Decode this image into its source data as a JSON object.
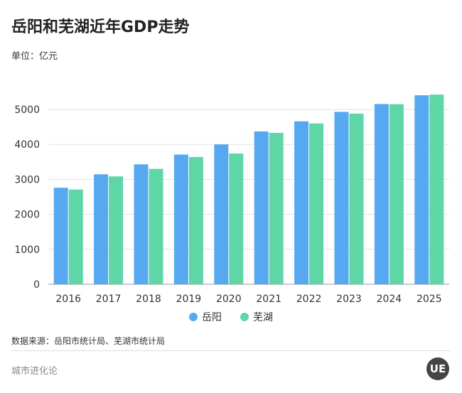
{
  "chart_data": {
    "type": "bar",
    "title": "岳阳和芜湖近年GDP走势",
    "unit_label": "单位：亿元",
    "categories": [
      "2016",
      "2017",
      "2018",
      "2019",
      "2020",
      "2021",
      "2022",
      "2023",
      "2024",
      "2025"
    ],
    "series": [
      {
        "name": "岳阳",
        "color": "#56a8f0",
        "values": [
          2760,
          3145,
          3430,
          3710,
          4000,
          4370,
          4660,
          4930,
          5155,
          5405
        ]
      },
      {
        "name": "芜湖",
        "color": "#5ed6a6",
        "values": [
          2710,
          3085,
          3300,
          3640,
          3740,
          4330,
          4600,
          4880,
          5150,
          5425
        ]
      }
    ],
    "ylim": [
      0,
      5500
    ],
    "yticks": [
      0,
      1000,
      2000,
      3000,
      4000,
      5000
    ],
    "grid": true,
    "legend": "bottom"
  },
  "footer": {
    "source": "数据来源：岳阳市统计局、芜湖市统计局",
    "brand": "城市进化论",
    "logo_text": "UE"
  }
}
